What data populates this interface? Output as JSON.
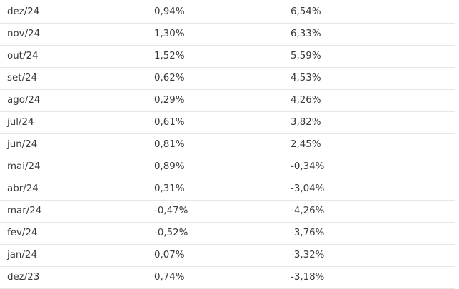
{
  "rows": [
    {
      "month": "dez/24",
      "monthly": "0,94%",
      "accumulated": "6,54%"
    },
    {
      "month": "nov/24",
      "monthly": "1,30%",
      "accumulated": "6,33%"
    },
    {
      "month": "out/24",
      "monthly": "1,52%",
      "accumulated": "5,59%"
    },
    {
      "month": "set/24",
      "monthly": "0,62%",
      "accumulated": "4,53%"
    },
    {
      "month": "ago/24",
      "monthly": "0,29%",
      "accumulated": "4,26%"
    },
    {
      "month": "jul/24",
      "monthly": "0,61%",
      "accumulated": "3,82%"
    },
    {
      "month": "jun/24",
      "monthly": "0,81%",
      "accumulated": "2,45%"
    },
    {
      "month": "mai/24",
      "monthly": "0,89%",
      "accumulated": "-0,34%"
    },
    {
      "month": "abr/24",
      "monthly": "0,31%",
      "accumulated": "-3,04%"
    },
    {
      "month": "mar/24",
      "monthly": "-0,47%",
      "accumulated": "-4,26%"
    },
    {
      "month": "fev/24",
      "monthly": "-0,52%",
      "accumulated": "-3,76%"
    },
    {
      "month": "jan/24",
      "monthly": "0,07%",
      "accumulated": "-3,32%"
    },
    {
      "month": "dez/23",
      "monthly": "0,74%",
      "accumulated": "-3,18%"
    }
  ]
}
